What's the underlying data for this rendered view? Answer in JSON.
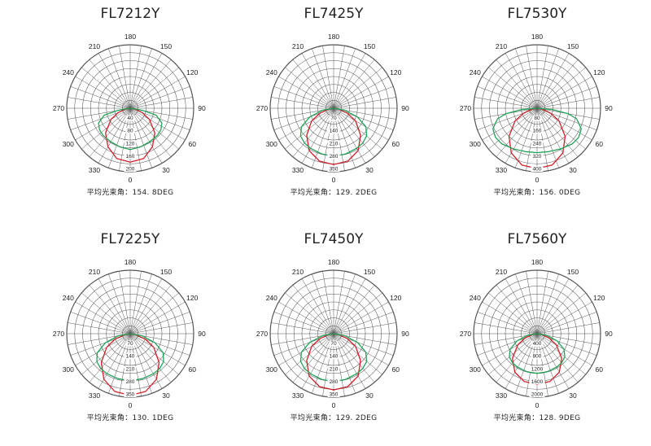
{
  "colors": {
    "grid": "#555555",
    "red_curve": "#d0202a",
    "green_curve": "#23a35a",
    "text": "#222222"
  },
  "angle_labels": [
    "180",
    "210",
    "240",
    "270",
    "300",
    "330",
    "0",
    "30",
    "60",
    "90",
    "120",
    "150"
  ],
  "beam_prefix": "平均光束角：",
  "chart_data": [
    {
      "type": "polar",
      "title": "FL7212Y",
      "beam_angle": "154. 8DEG",
      "radial_labels": [
        "40",
        "80",
        "120",
        "160",
        "200"
      ],
      "rmax": 200,
      "series": [
        {
          "color": "red",
          "points": [
            [
              0,
              170
            ],
            [
              15,
              164
            ],
            [
              30,
              140
            ],
            [
              45,
              110
            ],
            [
              60,
              70
            ],
            [
              70,
              40
            ],
            [
              80,
              15
            ],
            [
              90,
              0
            ]
          ]
        },
        {
          "color": "green",
          "points": [
            [
              0,
              130
            ],
            [
              15,
              126
            ],
            [
              30,
              122
            ],
            [
              45,
              121
            ],
            [
              55,
              118
            ],
            [
              65,
              110
            ],
            [
              75,
              85
            ],
            [
              80,
              40
            ],
            [
              82,
              10
            ],
            [
              90,
              0
            ]
          ]
        }
      ]
    },
    {
      "type": "polar",
      "title": "FL7425Y",
      "beam_angle": "129. 2DEG",
      "radial_labels": [
        "70",
        "140",
        "210",
        "280",
        "350"
      ],
      "rmax": 350,
      "series": [
        {
          "color": "red",
          "points": [
            [
              0,
              310
            ],
            [
              15,
              302
            ],
            [
              30,
              270
            ],
            [
              45,
              210
            ],
            [
              60,
              140
            ],
            [
              70,
              80
            ],
            [
              80,
              30
            ],
            [
              90,
              0
            ]
          ]
        },
        {
          "color": "green",
          "points": [
            [
              0,
              265
            ],
            [
              15,
              260
            ],
            [
              30,
              255
            ],
            [
              40,
              250
            ],
            [
              50,
              238
            ],
            [
              60,
              205
            ],
            [
              70,
              140
            ],
            [
              80,
              60
            ],
            [
              90,
              0
            ]
          ]
        }
      ]
    },
    {
      "type": "polar",
      "title": "FL7530Y",
      "beam_angle": "156. 0DEG",
      "radial_labels": [
        "80",
        "160",
        "240",
        "320",
        "400"
      ],
      "rmax": 400,
      "series": [
        {
          "color": "red",
          "points": [
            [
              0,
              380
            ],
            [
              15,
              370
            ],
            [
              30,
              325
            ],
            [
              45,
              250
            ],
            [
              60,
              160
            ],
            [
              70,
              90
            ],
            [
              80,
              30
            ],
            [
              90,
              0
            ]
          ]
        },
        {
          "color": "green",
          "points": [
            [
              0,
              280
            ],
            [
              15,
              283
            ],
            [
              30,
              296
            ],
            [
              45,
              316
            ],
            [
              55,
              320
            ],
            [
              65,
              307
            ],
            [
              75,
              258
            ],
            [
              80,
              200
            ],
            [
              85,
              100
            ],
            [
              90,
              0
            ]
          ]
        }
      ]
    },
    {
      "type": "polar",
      "title": "FL7225Y",
      "beam_angle": "130. 1DEG",
      "radial_labels": [
        "70",
        "140",
        "210",
        "280",
        "350"
      ],
      "rmax": 350,
      "series": [
        {
          "color": "red",
          "points": [
            [
              0,
              340
            ],
            [
              15,
              330
            ],
            [
              30,
              290
            ],
            [
              45,
              225
            ],
            [
              60,
              150
            ],
            [
              70,
              90
            ],
            [
              80,
              30
            ],
            [
              90,
              0
            ]
          ]
        },
        {
          "color": "green",
          "points": [
            [
              0,
              260
            ],
            [
              15,
              257
            ],
            [
              30,
              255
            ],
            [
              40,
              252
            ],
            [
              50,
              240
            ],
            [
              60,
              210
            ],
            [
              70,
              145
            ],
            [
              80,
              65
            ],
            [
              90,
              0
            ]
          ]
        }
      ]
    },
    {
      "type": "polar",
      "title": "FL7450Y",
      "beam_angle": "129. 2DEG",
      "radial_labels": [
        "70",
        "140",
        "210",
        "280",
        "350"
      ],
      "rmax": 350,
      "series": [
        {
          "color": "red",
          "points": [
            [
              0,
              310
            ],
            [
              15,
              302
            ],
            [
              30,
              270
            ],
            [
              45,
              210
            ],
            [
              60,
              140
            ],
            [
              70,
              80
            ],
            [
              80,
              30
            ],
            [
              90,
              0
            ]
          ]
        },
        {
          "color": "green",
          "points": [
            [
              0,
              265
            ],
            [
              15,
              260
            ],
            [
              30,
              255
            ],
            [
              40,
              250
            ],
            [
              50,
              238
            ],
            [
              60,
              205
            ],
            [
              70,
              140
            ],
            [
              80,
              60
            ],
            [
              90,
              0
            ]
          ]
        }
      ]
    },
    {
      "type": "polar",
      "title": "FL7560Y",
      "beam_angle": "128. 9DEG",
      "radial_labels": [
        "400",
        "800",
        "1200",
        "1600",
        "2000"
      ],
      "rmax": 2000,
      "series": [
        {
          "color": "red",
          "points": [
            [
              0,
              1600
            ],
            [
              15,
              1560
            ],
            [
              30,
              1400
            ],
            [
              45,
              1100
            ],
            [
              60,
              700
            ],
            [
              70,
              400
            ],
            [
              80,
              150
            ],
            [
              90,
              0
            ]
          ]
        },
        {
          "color": "green",
          "points": [
            [
              0,
              1250
            ],
            [
              15,
              1240
            ],
            [
              30,
              1220
            ],
            [
              40,
              1200
            ],
            [
              50,
              1140
            ],
            [
              60,
              980
            ],
            [
              70,
              680
            ],
            [
              80,
              300
            ],
            [
              90,
              0
            ]
          ]
        }
      ]
    }
  ]
}
